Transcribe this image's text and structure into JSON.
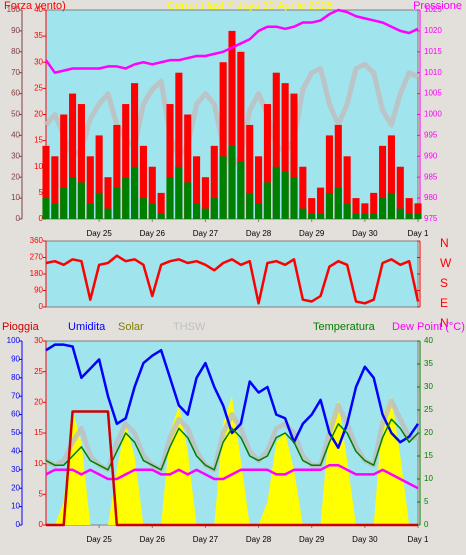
{
  "chart_data": [
    {
      "type": "line",
      "title": "Current last 7 days 30 Aprile 2025",
      "x": [
        0,
        4,
        8,
        12,
        16,
        20,
        24,
        28,
        32,
        36,
        40,
        44,
        48,
        52,
        56,
        60,
        64,
        68,
        72,
        76,
        80,
        84,
        88,
        92,
        96,
        100,
        104,
        108,
        112,
        116,
        120,
        124,
        128,
        132,
        136,
        140,
        144,
        148,
        152,
        156,
        160,
        164,
        168
      ],
      "xlim": [
        0,
        168
      ],
      "xticks": [
        {
          "value": 24,
          "label": "Day 25"
        },
        {
          "value": 48,
          "label": "Day 26"
        },
        {
          "value": 72,
          "label": "Day 27"
        },
        {
          "value": 96,
          "label": "Day 28"
        },
        {
          "value": 120,
          "label": "Day 29"
        },
        {
          "value": 144,
          "label": "Day 30"
        },
        {
          "value": 168,
          "label": "Day 1"
        }
      ],
      "ylim": [
        0,
        40
      ],
      "yticks": [
        0,
        5,
        10,
        15,
        20,
        25,
        30,
        35,
        40
      ],
      "y3lim": [
        0,
        100
      ],
      "y3ticks": [
        0,
        10,
        20,
        30,
        40,
        50,
        60,
        70,
        80,
        90,
        100
      ],
      "y2lim": [
        975,
        1025
      ],
      "y2ticks": [
        975,
        980,
        985,
        990,
        995,
        1000,
        1005,
        1010,
        1015,
        1020,
        1025
      ],
      "series": [
        {
          "color": "#c0c0c0",
          "style": "line",
          "axis": "y3",
          "values": [
            45,
            50,
            40,
            30,
            33,
            48,
            55,
            60,
            45,
            38,
            35,
            55,
            62,
            66,
            40,
            30,
            35,
            55,
            60,
            55,
            35,
            25,
            30,
            52,
            60,
            50,
            35,
            32,
            38,
            62,
            70,
            72,
            55,
            45,
            55,
            72,
            74,
            70,
            52,
            45,
            60,
            70,
            68
          ]
        },
        {
          "name": "Forza vento)",
          "color": "#ff0000",
          "style": "bar",
          "values": [
            14,
            12,
            20,
            24,
            22,
            12,
            16,
            8,
            18,
            22,
            26,
            14,
            10,
            5,
            22,
            28,
            20,
            12,
            8,
            14,
            30,
            36,
            32,
            18,
            12,
            22,
            28,
            26,
            24,
            10,
            4,
            6,
            16,
            18,
            12,
            4,
            3,
            5,
            14,
            16,
            10,
            4,
            3
          ]
        },
        {
          "color": "#008000",
          "style": "bar",
          "values": [
            4,
            3,
            6,
            8,
            7,
            3,
            5,
            2,
            6,
            8,
            10,
            4,
            3,
            1,
            8,
            10,
            7,
            3,
            2,
            4,
            12,
            14,
            11,
            5,
            3,
            7,
            10,
            9,
            8,
            2,
            1,
            1,
            5,
            6,
            3,
            1,
            1,
            1,
            4,
            5,
            2,
            1,
            1
          ]
        },
        {
          "name": "Pressione",
          "color": "#ff00ff",
          "style": "line",
          "axis": "y2",
          "values": [
            1013,
            1010,
            1010.5,
            1011,
            1011,
            1011,
            1011,
            1011.5,
            1011.5,
            1011,
            1012,
            1012.5,
            1012,
            1012.5,
            1013,
            1013,
            1013.5,
            1014,
            1014,
            1014.5,
            1015,
            1016,
            1017,
            1018,
            1020,
            1021,
            1021,
            1020.5,
            1021,
            1022,
            1022,
            1022.5,
            1024,
            1025,
            1024.5,
            1023.5,
            1023,
            1022.5,
            1022,
            1021,
            1020,
            1019.5,
            1020.5
          ]
        }
      ]
    },
    {
      "type": "line",
      "x": [
        0,
        4,
        8,
        12,
        16,
        20,
        24,
        28,
        32,
        36,
        40,
        44,
        48,
        52,
        56,
        60,
        64,
        68,
        72,
        76,
        80,
        84,
        88,
        92,
        96,
        100,
        104,
        108,
        112,
        116,
        120,
        124,
        128,
        132,
        136,
        140,
        144,
        148,
        152,
        156,
        160,
        164,
        168
      ],
      "xlim": [
        0,
        168
      ],
      "ylim": [
        0,
        360
      ],
      "yticks": [
        0,
        90,
        180,
        270,
        360
      ],
      "y2lim": [
        0,
        360
      ],
      "y2ticks": [
        {
          "value": 360,
          "label": "N"
        },
        {
          "value": 270,
          "label": "W"
        },
        {
          "value": 180,
          "label": "S"
        },
        {
          "value": 90,
          "label": "E"
        },
        {
          "value": 0,
          "label": "N"
        }
      ],
      "series": [
        {
          "color": "#ff0000",
          "style": "line",
          "values": [
            240,
            250,
            230,
            260,
            250,
            40,
            230,
            240,
            280,
            250,
            260,
            230,
            60,
            230,
            250,
            260,
            240,
            250,
            230,
            200,
            240,
            260,
            230,
            250,
            20,
            240,
            250,
            230,
            260,
            40,
            30,
            60,
            220,
            250,
            230,
            30,
            20,
            40,
            240,
            260,
            230,
            250,
            30
          ]
        }
      ]
    },
    {
      "type": "line",
      "x": [
        0,
        4,
        8,
        12,
        16,
        20,
        24,
        28,
        32,
        36,
        40,
        44,
        48,
        52,
        56,
        60,
        64,
        68,
        72,
        76,
        80,
        84,
        88,
        92,
        96,
        100,
        104,
        108,
        112,
        116,
        120,
        124,
        128,
        132,
        136,
        140,
        144,
        148,
        152,
        156,
        160,
        164,
        168
      ],
      "xlim": [
        0,
        168
      ],
      "xticks": [
        {
          "value": 24,
          "label": "Day 25"
        },
        {
          "value": 48,
          "label": "Day 26"
        },
        {
          "value": 72,
          "label": "Day 27"
        },
        {
          "value": 96,
          "label": "Day 28"
        },
        {
          "value": 120,
          "label": "Day 29"
        },
        {
          "value": 144,
          "label": "Day 30"
        },
        {
          "value": 168,
          "label": "Day 1"
        }
      ],
      "ylim": [
        0,
        30
      ],
      "yticks": [
        0,
        5,
        10,
        15,
        20,
        25,
        30
      ],
      "y3lim": [
        0,
        100
      ],
      "y3ticks": [
        0,
        10,
        20,
        30,
        40,
        50,
        60,
        70,
        80,
        90,
        100
      ],
      "y2lim": [
        0,
        40
      ],
      "y2ticks": [
        0,
        5,
        10,
        15,
        20,
        25,
        30,
        35,
        40
      ],
      "series": [
        {
          "name": "Solar",
          "color": "#ffff00",
          "style": "area",
          "axis": "y2",
          "values": [
            0,
            0,
            5,
            25,
            18,
            0,
            0,
            0,
            12,
            22,
            15,
            0,
            0,
            0,
            20,
            26,
            16,
            0,
            0,
            0,
            22,
            28,
            14,
            0,
            0,
            5,
            18,
            20,
            12,
            0,
            0,
            0,
            22,
            27,
            14,
            0,
            0,
            0,
            24,
            28,
            15,
            0,
            0
          ]
        },
        {
          "name": "THSW",
          "color": "#c0c0c0",
          "style": "line",
          "axis": "y2",
          "values": [
            14,
            13,
            14,
            18,
            21,
            15,
            13,
            12,
            18,
            22,
            20,
            15,
            13,
            12,
            19,
            23,
            21,
            16,
            13,
            12,
            20,
            24,
            21,
            16,
            14,
            16,
            21,
            22,
            20,
            15,
            13,
            13,
            20,
            26,
            22,
            17,
            14,
            13,
            22,
            27,
            23,
            19,
            19
          ]
        },
        {
          "name": "Umidita",
          "color": "#0000ff",
          "style": "line",
          "axis": "y3",
          "values": [
            95,
            98,
            98,
            97,
            80,
            85,
            90,
            70,
            55,
            58,
            75,
            88,
            92,
            95,
            80,
            65,
            60,
            80,
            88,
            75,
            65,
            50,
            55,
            78,
            72,
            75,
            60,
            58,
            45,
            55,
            60,
            68,
            50,
            42,
            55,
            75,
            86,
            80,
            60,
            50,
            45,
            48,
            55
          ]
        },
        {
          "name": "Temperatura",
          "color": "#008000",
          "style": "line",
          "axis": "y2",
          "values": [
            14,
            13,
            13,
            15,
            17,
            14,
            13,
            12,
            16,
            20,
            18,
            14,
            13,
            12,
            17,
            21,
            19,
            15,
            13,
            12,
            18,
            21,
            19,
            15,
            14,
            15,
            19,
            20,
            18,
            14,
            13,
            13,
            18,
            22,
            20,
            16,
            14,
            13,
            19,
            23,
            21,
            18,
            20
          ]
        },
        {
          "name": "Dew Point (°C)",
          "color": "#ff00ff",
          "style": "line",
          "axis": "y2",
          "values": [
            11,
            12,
            12,
            12,
            11,
            12,
            11,
            10,
            10,
            11,
            12,
            12,
            12,
            11,
            11,
            12,
            11,
            12,
            11,
            10,
            10,
            11,
            12,
            12,
            12,
            12,
            11,
            11,
            12,
            12,
            12,
            12,
            13,
            13,
            12,
            11,
            11,
            11,
            12,
            11,
            10,
            9,
            8
          ]
        },
        {
          "name": "Pioggia",
          "color": "#cc0000",
          "style": "line",
          "values": [
            0,
            0,
            0,
            18.5,
            18.5,
            18.5,
            18.5,
            18.5,
            0,
            0,
            0,
            0,
            0,
            0,
            0,
            0,
            0,
            0,
            0,
            0,
            0,
            0,
            0,
            0,
            0,
            0,
            0,
            0,
            0,
            0,
            0,
            0,
            0,
            0,
            0,
            0,
            0,
            0,
            0,
            0,
            0,
            0,
            0
          ]
        }
      ]
    }
  ]
}
